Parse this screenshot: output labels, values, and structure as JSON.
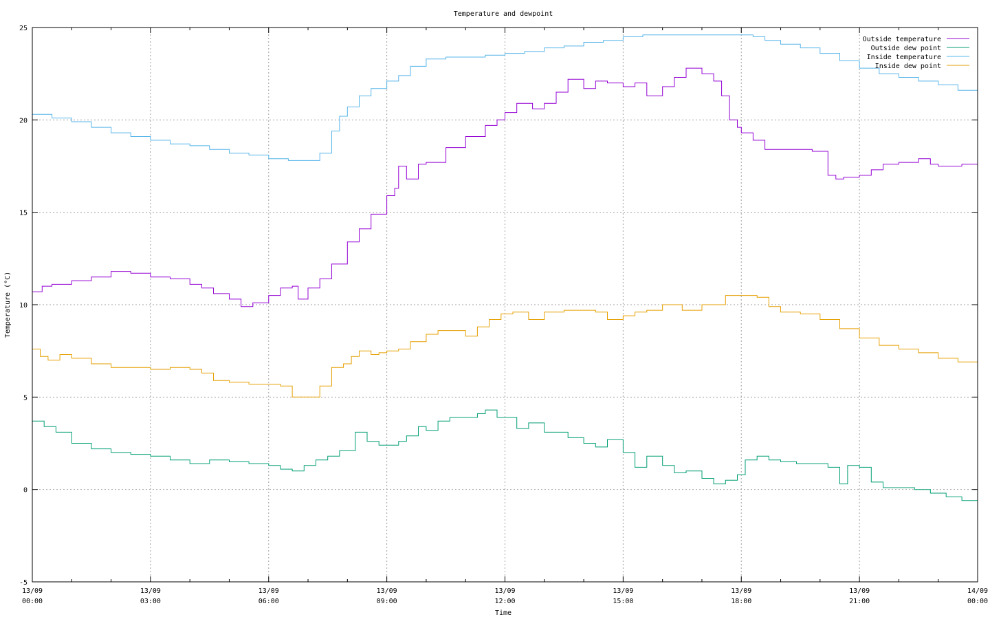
{
  "chart_data": {
    "type": "line",
    "title": "Temperature and dewpoint",
    "xlabel": "Time",
    "ylabel": "Temperature (°C)",
    "ylim": [
      -5,
      25
    ],
    "xlim": [
      0,
      24
    ],
    "yticks": [
      -5,
      0,
      5,
      10,
      15,
      20,
      25
    ],
    "xticks": [
      {
        "x": 0,
        "date": "13/09",
        "time": "00:00"
      },
      {
        "x": 3,
        "date": "13/09",
        "time": "03:00"
      },
      {
        "x": 6,
        "date": "13/09",
        "time": "06:00"
      },
      {
        "x": 9,
        "date": "13/09",
        "time": "09:00"
      },
      {
        "x": 12,
        "date": "13/09",
        "time": "12:00"
      },
      {
        "x": 15,
        "date": "13/09",
        "time": "15:00"
      },
      {
        "x": 18,
        "date": "13/09",
        "time": "18:00"
      },
      {
        "x": 21,
        "date": "13/09",
        "time": "21:00"
      },
      {
        "x": 24,
        "date": "14/09",
        "time": "00:00"
      }
    ],
    "grid": true,
    "legend_position": "top-right",
    "series": [
      {
        "name": "Outside temperature",
        "color": "#9400d3",
        "x": [
          0,
          0.25,
          0.5,
          1,
          1.5,
          2,
          2.3,
          2.5,
          3,
          3.5,
          4,
          4.3,
          4.6,
          5,
          5.3,
          5.6,
          6,
          6.3,
          6.6,
          6.75,
          7,
          7.3,
          7.6,
          8,
          8.3,
          8.6,
          9,
          9.2,
          9.3,
          9.5,
          9.8,
          10,
          10.5,
          11,
          11.5,
          11.8,
          12,
          12.3,
          12.7,
          13,
          13.3,
          13.6,
          14,
          14.3,
          14.6,
          15,
          15.3,
          15.6,
          16,
          16.3,
          16.6,
          17,
          17.3,
          17.5,
          17.7,
          17.9,
          18,
          18.3,
          18.6,
          19,
          19.4,
          19.8,
          20.2,
          20.4,
          20.6,
          21,
          21.3,
          21.6,
          22,
          22.5,
          22.8,
          23,
          23.3,
          23.6,
          24
        ],
        "y": [
          10.7,
          11.0,
          11.1,
          11.3,
          11.5,
          11.8,
          11.8,
          11.7,
          11.5,
          11.4,
          11.1,
          10.9,
          10.6,
          10.3,
          9.9,
          10.1,
          10.5,
          10.9,
          11.0,
          10.3,
          10.9,
          11.4,
          12.2,
          13.4,
          14.1,
          14.9,
          15.9,
          16.3,
          17.5,
          16.8,
          17.6,
          17.7,
          18.5,
          19.1,
          19.7,
          20.0,
          20.4,
          20.9,
          20.6,
          20.9,
          21.5,
          22.2,
          21.7,
          22.1,
          22.0,
          21.8,
          22.0,
          21.3,
          21.8,
          22.3,
          22.8,
          22.5,
          22.1,
          21.3,
          20.0,
          19.6,
          19.3,
          18.9,
          18.4,
          18.4,
          18.4,
          18.3,
          17.0,
          16.8,
          16.9,
          17.0,
          17.3,
          17.6,
          17.7,
          17.9,
          17.6,
          17.5,
          17.5,
          17.6,
          17.6
        ]
      },
      {
        "name": "Outside dew point",
        "color": "#009e73",
        "x": [
          0,
          0.3,
          0.6,
          1,
          1.5,
          2,
          2.5,
          3,
          3.5,
          4,
          4.5,
          5,
          5.5,
          6,
          6.3,
          6.6,
          6.9,
          7.2,
          7.5,
          7.8,
          8.2,
          8.5,
          8.8,
          9,
          9.3,
          9.5,
          9.8,
          10,
          10.3,
          10.6,
          11,
          11.3,
          11.5,
          11.8,
          12,
          12.3,
          12.6,
          13,
          13.3,
          13.6,
          14,
          14.3,
          14.6,
          15,
          15.3,
          15.6,
          16,
          16.3,
          16.6,
          17,
          17.3,
          17.6,
          17.9,
          18.1,
          18.4,
          18.7,
          19,
          19.4,
          19.8,
          20.2,
          20.5,
          20.7,
          21,
          21.3,
          21.6,
          22,
          22.4,
          22.8,
          23.2,
          23.6,
          24
        ],
        "y": [
          3.7,
          3.4,
          3.1,
          2.5,
          2.2,
          2.0,
          1.9,
          1.8,
          1.6,
          1.4,
          1.6,
          1.5,
          1.4,
          1.3,
          1.1,
          1.0,
          1.3,
          1.6,
          1.8,
          2.1,
          3.1,
          2.6,
          2.4,
          2.4,
          2.6,
          2.9,
          3.4,
          3.2,
          3.7,
          3.9,
          3.9,
          4.1,
          4.3,
          3.9,
          3.9,
          3.3,
          3.6,
          3.1,
          3.1,
          2.8,
          2.5,
          2.3,
          2.7,
          2.0,
          1.2,
          1.8,
          1.3,
          0.9,
          1.0,
          0.6,
          0.3,
          0.5,
          0.8,
          1.6,
          1.8,
          1.6,
          1.5,
          1.4,
          1.4,
          1.2,
          0.3,
          1.3,
          1.2,
          0.4,
          0.1,
          0.1,
          0.0,
          -0.2,
          -0.4,
          -0.6,
          -0.6
        ]
      },
      {
        "name": "Inside temperature",
        "color": "#56b4e9",
        "x": [
          0,
          0.5,
          1,
          1.5,
          2,
          2.5,
          3,
          3.5,
          4,
          4.5,
          5,
          5.5,
          6,
          6.5,
          7,
          7.3,
          7.6,
          7.8,
          8,
          8.3,
          8.6,
          9,
          9.3,
          9.6,
          10,
          10.5,
          11,
          11.5,
          12,
          12.5,
          13,
          13.5,
          14,
          14.5,
          15,
          15.5,
          16,
          16.5,
          17,
          17.5,
          18,
          18.3,
          18.6,
          19,
          19.5,
          20,
          20.5,
          21,
          21.5,
          22,
          22.5,
          23,
          23.5,
          24
        ],
        "y": [
          20.3,
          20.1,
          19.9,
          19.6,
          19.3,
          19.1,
          18.9,
          18.7,
          18.6,
          18.4,
          18.2,
          18.1,
          17.9,
          17.8,
          17.8,
          18.2,
          19.4,
          20.2,
          20.7,
          21.3,
          21.7,
          22.1,
          22.4,
          22.9,
          23.3,
          23.4,
          23.4,
          23.5,
          23.6,
          23.7,
          23.9,
          24.0,
          24.2,
          24.3,
          24.5,
          24.6,
          24.6,
          24.6,
          24.6,
          24.6,
          24.6,
          24.5,
          24.3,
          24.1,
          23.9,
          23.6,
          23.2,
          22.8,
          22.5,
          22.3,
          22.1,
          21.9,
          21.6,
          21.4
        ]
      },
      {
        "name": "Inside dew point",
        "color": "#e69f00",
        "x": [
          0,
          0.2,
          0.4,
          0.7,
          1,
          1.5,
          2,
          2.5,
          3,
          3.5,
          4,
          4.3,
          4.6,
          5,
          5.5,
          6,
          6.3,
          6.6,
          7,
          7.3,
          7.6,
          7.9,
          8.1,
          8.3,
          8.6,
          8.8,
          9,
          9.3,
          9.6,
          10,
          10.3,
          10.6,
          11,
          11.3,
          11.6,
          11.9,
          12.2,
          12.6,
          13,
          13.5,
          14,
          14.3,
          14.6,
          15,
          15.3,
          15.6,
          16,
          16.5,
          17,
          17.3,
          17.6,
          18,
          18.4,
          18.7,
          19,
          19.5,
          20,
          20.5,
          21,
          21.5,
          22,
          22.5,
          23,
          23.5,
          24
        ],
        "y": [
          7.6,
          7.2,
          7.0,
          7.3,
          7.1,
          6.8,
          6.6,
          6.6,
          6.5,
          6.6,
          6.5,
          6.3,
          5.9,
          5.8,
          5.7,
          5.7,
          5.6,
          5.0,
          5.0,
          5.6,
          6.6,
          6.8,
          7.2,
          7.5,
          7.3,
          7.4,
          7.5,
          7.6,
          8.0,
          8.4,
          8.6,
          8.6,
          8.3,
          8.8,
          9.2,
          9.5,
          9.6,
          9.2,
          9.6,
          9.7,
          9.7,
          9.6,
          9.2,
          9.4,
          9.6,
          9.7,
          10.0,
          9.7,
          10.0,
          10.0,
          10.5,
          10.5,
          10.4,
          9.9,
          9.6,
          9.5,
          9.2,
          8.7,
          8.2,
          7.8,
          7.6,
          7.4,
          7.1,
          6.9,
          6.5
        ]
      }
    ]
  }
}
